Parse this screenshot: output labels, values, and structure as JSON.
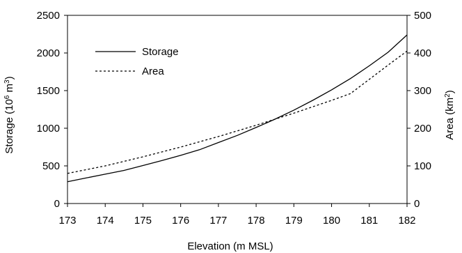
{
  "chart_data": {
    "type": "line",
    "xlabel": "Elevation (m MSL)",
    "ylabel_left": {
      "main": "Storage (10",
      "sup1": "6",
      "mid": " m",
      "sup2": "3",
      "end": ")"
    },
    "ylabel_right": {
      "main": "Area (km",
      "sup": "2",
      "end": ")"
    },
    "xlim": [
      173,
      182
    ],
    "ylim_left": [
      0,
      2500
    ],
    "ylim_right": [
      0,
      500
    ],
    "x_ticks": [
      173,
      174,
      175,
      176,
      177,
      178,
      179,
      180,
      181,
      182
    ],
    "y_ticks_left": [
      0,
      500,
      1000,
      1500,
      2000,
      2500
    ],
    "y_ticks_right": [
      0,
      100,
      200,
      300,
      400,
      500
    ],
    "legend_position": "upper-left",
    "grid": false,
    "series": [
      {
        "name": "Storage",
        "axis": "left",
        "style": "solid",
        "x": [
          173.0,
          173.5,
          174.0,
          174.5,
          175.0,
          175.5,
          176.0,
          176.5,
          177.0,
          177.5,
          178.0,
          178.5,
          179.0,
          179.5,
          180.0,
          180.5,
          181.0,
          181.5,
          182.0
        ],
        "y": [
          290,
          340,
          390,
          440,
          505,
          570,
          640,
          715,
          810,
          905,
          1010,
          1120,
          1240,
          1370,
          1510,
          1660,
          1830,
          2010,
          2240
        ]
      },
      {
        "name": "Area",
        "axis": "right",
        "style": "dotted",
        "x": [
          173.0,
          173.5,
          174.0,
          174.5,
          175.0,
          175.5,
          176.0,
          176.5,
          177.0,
          177.5,
          178.0,
          178.5,
          179.0,
          179.5,
          180.0,
          180.5,
          181.0,
          181.5,
          182.0
        ],
        "y": [
          80,
          90,
          100,
          112,
          124,
          137,
          150,
          164,
          178,
          193,
          208,
          224,
          240,
          257,
          274,
          292,
          330,
          368,
          405
        ]
      }
    ]
  }
}
